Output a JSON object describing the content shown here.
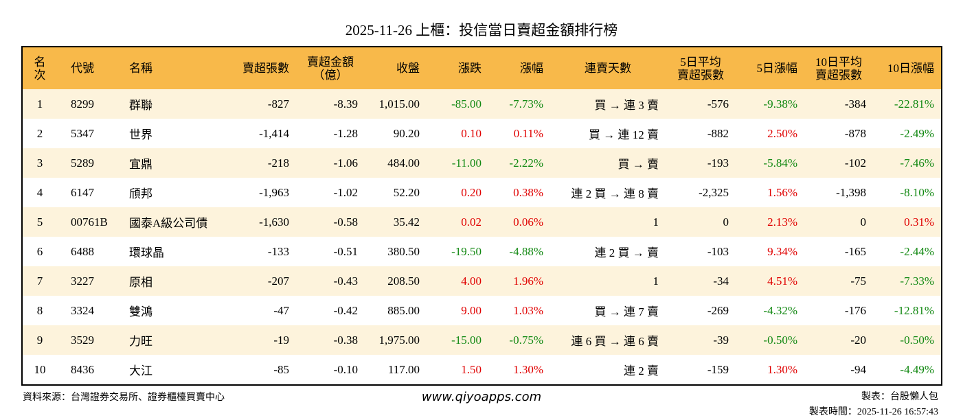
{
  "title": "2025-11-26 上櫃：投信當日賣超金額排行榜",
  "table": {
    "headers": [
      "名次",
      "代號",
      "名稱",
      "賣超張數",
      "賣超金額\n（億）",
      "收盤",
      "漲跌",
      "漲幅",
      "連賣天數",
      "5日平均\n賣超張數",
      "5日漲幅",
      "10日平均\n賣超張數",
      "10日漲幅"
    ],
    "rows": [
      [
        "1",
        "8299",
        "群聯",
        "-827",
        "-8.39",
        "1,015.00",
        "-85.00",
        "-7.73%",
        "買 → 連 3 賣",
        "-576",
        "-9.38%",
        "-384",
        "-22.81%"
      ],
      [
        "2",
        "5347",
        "世界",
        "-1,414",
        "-1.28",
        "90.20",
        "0.10",
        "0.11%",
        "買 → 連 12 賣",
        "-882",
        "2.50%",
        "-878",
        "-2.49%"
      ],
      [
        "3",
        "5289",
        "宜鼎",
        "-218",
        "-1.06",
        "484.00",
        "-11.00",
        "-2.22%",
        "買 → 賣",
        "-193",
        "-5.84%",
        "-102",
        "-7.46%"
      ],
      [
        "4",
        "6147",
        "頎邦",
        "-1,963",
        "-1.02",
        "52.20",
        "0.20",
        "0.38%",
        "連 2 買 → 連 8 賣",
        "-2,325",
        "1.56%",
        "-1,398",
        "-8.10%"
      ],
      [
        "5",
        "00761B",
        "國泰A級公司債",
        "-1,630",
        "-0.58",
        "35.42",
        "0.02",
        "0.06%",
        "1",
        "0",
        "2.13%",
        "0",
        "0.31%"
      ],
      [
        "6",
        "6488",
        "環球晶",
        "-133",
        "-0.51",
        "380.50",
        "-19.50",
        "-4.88%",
        "連 2 買 → 賣",
        "-103",
        "9.34%",
        "-165",
        "-2.44%"
      ],
      [
        "7",
        "3227",
        "原相",
        "-207",
        "-0.43",
        "208.50",
        "4.00",
        "1.96%",
        "1",
        "-34",
        "4.51%",
        "-75",
        "-7.33%"
      ],
      [
        "8",
        "3324",
        "雙鴻",
        "-47",
        "-0.42",
        "885.00",
        "9.00",
        "1.03%",
        "買 → 連 7 賣",
        "-269",
        "-4.32%",
        "-176",
        "-12.81%"
      ],
      [
        "9",
        "3529",
        "力旺",
        "-19",
        "-0.38",
        "1,975.00",
        "-15.00",
        "-0.75%",
        "連 6 買 → 連 6 賣",
        "-39",
        "-0.50%",
        "-20",
        "-0.50%"
      ],
      [
        "10",
        "8436",
        "大江",
        "-85",
        "-0.10",
        "117.00",
        "1.50",
        "1.30%",
        "連 2 賣",
        "-159",
        "1.30%",
        "-94",
        "-4.49%"
      ]
    ]
  },
  "footer": {
    "source": "資料來源：台灣證券交易所、證券櫃檯買賣中心",
    "site": "www.qiyoapps.com",
    "maker": "製表：台股懶人包",
    "time": "製表時間：2025-11-26 16:57:43"
  }
}
